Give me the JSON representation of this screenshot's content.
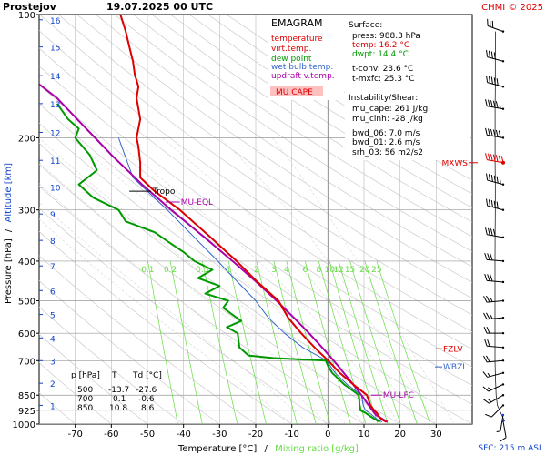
{
  "header": {
    "station": "Prostejov",
    "datetime": "19.07.2025 00 UTC",
    "copyright": "CHMI © 2025"
  },
  "legend": {
    "title": "EMAGRAM",
    "items": [
      {
        "label": "temperature",
        "color": "#dd0000"
      },
      {
        "label": "virt.temp.",
        "color": "#dd0000"
      },
      {
        "label": "dew point",
        "color": "#009900"
      },
      {
        "label": "wet bulb temp.",
        "color": "#3366cc"
      },
      {
        "label": "updraft v.temp.",
        "color": "#aa00aa"
      }
    ],
    "cape_label": "MU CAPE",
    "cape_fill": "#ffc0c0"
  },
  "info": {
    "surface_title": "Surface:",
    "surface": [
      {
        "text": "press: 988.3 hPa",
        "color": "#000000"
      },
      {
        "text": "temp: 16.2 °C",
        "color": "#dd0000"
      },
      {
        "text": "dwpt: 14.4 °C",
        "color": "#009900"
      }
    ],
    "conv": [
      "t-conv: 23.6 °C",
      "t-mxfc: 25.3 °C"
    ],
    "instab_title": "Instability/Shear:",
    "instab": [
      "mu_cape: 261 J/kg",
      "mu_cinh: -28 J/kg"
    ],
    "shear": [
      "bwd_06: 7.0 m/s",
      "bwd_01: 2.6 m/s",
      "srh_03: 56 m2/s2"
    ]
  },
  "table": {
    "headers": [
      "p [hPa]",
      "T",
      "Td [°C]"
    ],
    "rows": [
      [
        "500",
        "-13.7",
        "-27.6"
      ],
      [
        "700",
        "0.1",
        "-0.6"
      ],
      [
        "850",
        "10.8",
        "8.6"
      ]
    ]
  },
  "labels": {
    "tropo": "Tropo",
    "mu_eql": "MU-EQL",
    "mu_lfc": "MU-LFC",
    "mxws": "MXWS",
    "fzlv": "FZLV",
    "wbzl": "WBZL",
    "sfc": "SFC: 215 m ASL"
  },
  "axes": {
    "xlabel_main": "Temperature [°C]",
    "xlabel_sep": "/",
    "xlabel_mix": "Mixing ratio [g/kg]",
    "ylabel_main": "Pressure [hPa]",
    "ylabel_sep": "/",
    "ylabel_alt": "Altitude [km]"
  },
  "colors": {
    "temperature": "#dd0000",
    "dewpoint": "#009900",
    "wetbulb": "#3366cc",
    "updraft": "#aa00aa",
    "mixing_ratio": "#66dd44",
    "grid": "#999999",
    "altitude": "#1144cc",
    "wind": "#000000",
    "wind_max": "#dd0000"
  },
  "chart_data": {
    "type": "line",
    "y_scale": "log-pressure",
    "ylim": [
      1000,
      100
    ],
    "xlim": [
      -80,
      40
    ],
    "x_ticks": [
      -70,
      -60,
      -50,
      -40,
      -30,
      -20,
      -10,
      0,
      10,
      20,
      30
    ],
    "y_ticks": [
      100,
      200,
      300,
      400,
      500,
      600,
      700,
      850,
      925,
      1000
    ],
    "altitude_ticks": [
      {
        "label": "1",
        "p": 900
      },
      {
        "label": "2",
        "p": 795
      },
      {
        "label": "3",
        "p": 700
      },
      {
        "label": "4",
        "p": 616
      },
      {
        "label": "5",
        "p": 540
      },
      {
        "label": "6",
        "p": 472
      },
      {
        "label": "7",
        "p": 411
      },
      {
        "label": "8",
        "p": 356
      },
      {
        "label": "9",
        "p": 307
      },
      {
        "label": "10",
        "p": 264
      },
      {
        "label": "11",
        "p": 227
      },
      {
        "label": "12",
        "p": 194
      },
      {
        "label": "13",
        "p": 165
      },
      {
        "label": "14",
        "p": 141
      },
      {
        "label": "15",
        "p": 120
      },
      {
        "label": "16",
        "p": 103
      }
    ],
    "mixing_ratio_labels": [
      "0.1",
      "0.2",
      "0.5",
      "1",
      "2",
      "3",
      "4",
      "6",
      "8",
      "10",
      "12",
      "15",
      "20",
      "25"
    ],
    "mixing_ratio_values": [
      0.1,
      0.2,
      0.5,
      1,
      2,
      3,
      4,
      6,
      8,
      10,
      12,
      15,
      20,
      25
    ],
    "dry_adiabats_C": [
      -80,
      -70,
      -60,
      -50,
      -40,
      -30,
      -20,
      -10,
      0,
      10,
      20,
      30,
      40,
      50,
      60,
      70,
      80,
      90,
      100,
      110,
      120,
      130,
      140,
      150,
      160,
      170,
      180,
      190,
      200
    ],
    "moist_adiabats_C": [
      -10,
      -5,
      0,
      5,
      10,
      15,
      20,
      25,
      30,
      35
    ],
    "series": [
      {
        "name": "temperature",
        "points": [
          [
            988,
            16.2
          ],
          [
            975,
            15.0
          ],
          [
            960,
            14.2
          ],
          [
            940,
            13.6
          ],
          [
            925,
            12.8
          ],
          [
            900,
            11.8
          ],
          [
            850,
            10.8
          ],
          [
            800,
            7.0
          ],
          [
            750,
            3.3
          ],
          [
            720,
            1.4
          ],
          [
            700,
            0.1
          ],
          [
            650,
            -3.7
          ],
          [
            600,
            -7.4
          ],
          [
            550,
            -11.0
          ],
          [
            500,
            -13.7
          ],
          [
            450,
            -19.5
          ],
          [
            400,
            -25.3
          ],
          [
            350,
            -32.5
          ],
          [
            300,
            -41.0
          ],
          [
            270,
            -48.0
          ],
          [
            250,
            -52.0
          ],
          [
            230,
            -52.0
          ],
          [
            210,
            -52.5
          ],
          [
            200,
            -53.0
          ],
          [
            180,
            -52.0
          ],
          [
            160,
            -53.0
          ],
          [
            150,
            -52.5
          ],
          [
            140,
            -53.5
          ],
          [
            130,
            -54.0
          ],
          [
            120,
            -55.0
          ],
          [
            110,
            -56.0
          ],
          [
            100,
            -57.5
          ]
        ]
      },
      {
        "name": "dew point",
        "points": [
          [
            988,
            14.4
          ],
          [
            975,
            13.2
          ],
          [
            960,
            12.0
          ],
          [
            940,
            10.5
          ],
          [
            925,
            9.0
          ],
          [
            900,
            8.8
          ],
          [
            850,
            8.6
          ],
          [
            800,
            4.5
          ],
          [
            750,
            1.2
          ],
          [
            720,
            0.0
          ],
          [
            700,
            -0.6
          ],
          [
            690,
            -15.0
          ],
          [
            680,
            -22.0
          ],
          [
            650,
            -24.5
          ],
          [
            600,
            -25.0
          ],
          [
            580,
            -28.0
          ],
          [
            560,
            -24.0
          ],
          [
            540,
            -26.5
          ],
          [
            520,
            -29.0
          ],
          [
            500,
            -27.6
          ],
          [
            480,
            -34.0
          ],
          [
            460,
            -30.0
          ],
          [
            440,
            -36.0
          ],
          [
            420,
            -32.0
          ],
          [
            400,
            -37.0
          ],
          [
            380,
            -40.0
          ],
          [
            360,
            -44.0
          ],
          [
            340,
            -48.0
          ],
          [
            320,
            -56.0
          ],
          [
            300,
            -58.0
          ],
          [
            280,
            -65.0
          ],
          [
            260,
            -69.0
          ],
          [
            240,
            -64.0
          ],
          [
            220,
            -66.0
          ],
          [
            200,
            -70.0
          ],
          [
            190,
            -69.0
          ],
          [
            180,
            -72.0
          ],
          [
            165,
            -75.0
          ]
        ]
      },
      {
        "name": "wet bulb temp.",
        "points": [
          [
            988,
            15.0
          ],
          [
            975,
            13.8
          ],
          [
            960,
            12.8
          ],
          [
            940,
            11.6
          ],
          [
            925,
            10.4
          ],
          [
            900,
            9.8
          ],
          [
            850,
            9.3
          ],
          [
            800,
            5.3
          ],
          [
            750,
            2.0
          ],
          [
            720,
            0.6
          ],
          [
            700,
            -0.3
          ],
          [
            650,
            -7.0
          ],
          [
            600,
            -12.0
          ],
          [
            550,
            -16.5
          ],
          [
            500,
            -20.0
          ],
          [
            450,
            -25.0
          ],
          [
            400,
            -30.5
          ],
          [
            350,
            -37.0
          ],
          [
            300,
            -44.5
          ],
          [
            270,
            -50.0
          ],
          [
            250,
            -54.0
          ],
          [
            200,
            -58.0
          ]
        ]
      },
      {
        "name": "updraft v.temp.",
        "points": [
          [
            988,
            16.5
          ],
          [
            950,
            13.3
          ],
          [
            900,
            11.3
          ],
          [
            850,
            9.3
          ],
          [
            800,
            7.0
          ],
          [
            750,
            4.4
          ],
          [
            700,
            1.6
          ],
          [
            650,
            -1.6
          ],
          [
            600,
            -5.2
          ],
          [
            550,
            -9.4
          ],
          [
            500,
            -14.2
          ],
          [
            450,
            -19.8
          ],
          [
            400,
            -26.4
          ],
          [
            350,
            -34.2
          ],
          [
            300,
            -43.4
          ],
          [
            260,
            -51.5
          ],
          [
            220,
            -60.0
          ],
          [
            200,
            -64.5
          ],
          [
            180,
            -69.5
          ],
          [
            160,
            -75.0
          ],
          [
            148,
            -80.0
          ]
        ]
      }
    ],
    "levels": [
      {
        "label": "Tropo",
        "p": 270
      },
      {
        "label": "MU-EQL",
        "p": 287
      },
      {
        "label": "MU-LFC",
        "p": 850
      },
      {
        "label": "MXWS",
        "p": 230
      },
      {
        "label": "FZLV",
        "p": 655
      },
      {
        "label": "WBZL",
        "p": 725
      }
    ],
    "surface_altitude": "215 m ASL",
    "wind_profile_ms": [
      {
        "p": 985,
        "dir": 170,
        "spd": 4
      },
      {
        "p": 950,
        "dir": 190,
        "spd": 3
      },
      {
        "p": 900,
        "dir": 225,
        "spd": 6
      },
      {
        "p": 850,
        "dir": 240,
        "spd": 8
      },
      {
        "p": 800,
        "dir": 245,
        "spd": 7
      },
      {
        "p": 750,
        "dir": 255,
        "spd": 8
      },
      {
        "p": 700,
        "dir": 265,
        "spd": 9
      },
      {
        "p": 650,
        "dir": 275,
        "spd": 9
      },
      {
        "p": 600,
        "dir": 270,
        "spd": 11
      },
      {
        "p": 550,
        "dir": 265,
        "spd": 12
      },
      {
        "p": 500,
        "dir": 265,
        "spd": 12
      },
      {
        "p": 450,
        "dir": 275,
        "spd": 14
      },
      {
        "p": 400,
        "dir": 275,
        "spd": 16
      },
      {
        "p": 350,
        "dir": 280,
        "spd": 19
      },
      {
        "p": 300,
        "dir": 285,
        "spd": 24
      },
      {
        "p": 260,
        "dir": 285,
        "spd": 28
      },
      {
        "p": 230,
        "dir": 280,
        "spd": 34
      },
      {
        "p": 200,
        "dir": 280,
        "spd": 30
      },
      {
        "p": 170,
        "dir": 280,
        "spd": 28
      },
      {
        "p": 150,
        "dir": 285,
        "spd": 25
      },
      {
        "p": 130,
        "dir": 285,
        "spd": 20
      },
      {
        "p": 110,
        "dir": 290,
        "spd": 14
      }
    ]
  }
}
